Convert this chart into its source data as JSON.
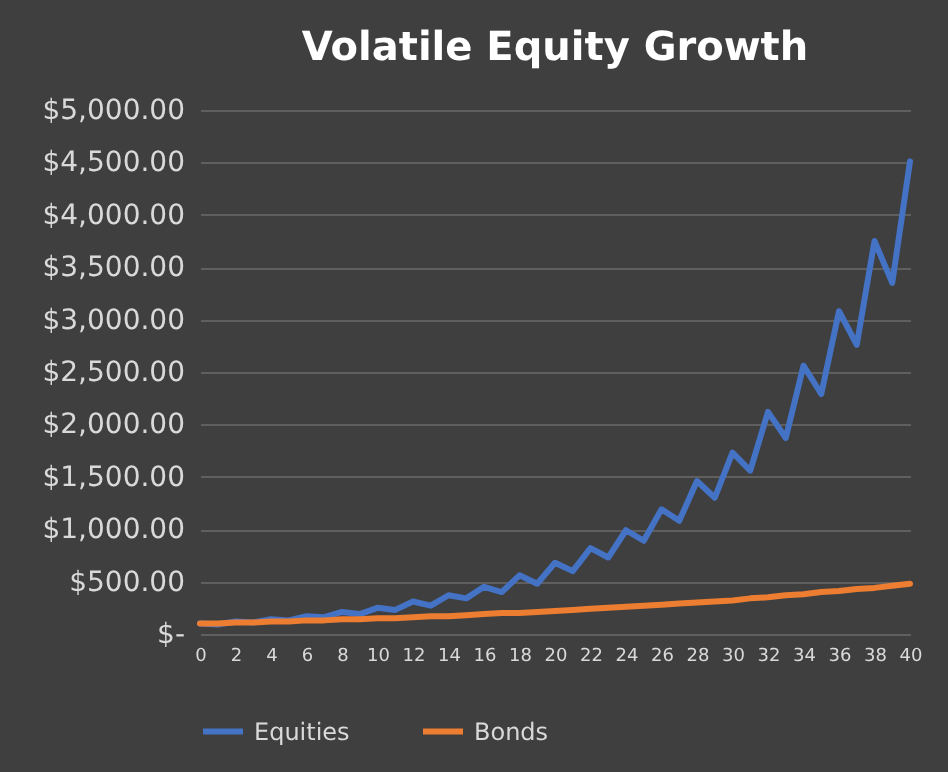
{
  "chart_data": {
    "type": "line",
    "title": "Volatile Equity Growth",
    "x": [
      0,
      1,
      2,
      3,
      4,
      5,
      6,
      7,
      8,
      9,
      10,
      11,
      12,
      13,
      14,
      15,
      16,
      17,
      18,
      19,
      20,
      21,
      22,
      23,
      24,
      25,
      26,
      27,
      28,
      29,
      30,
      31,
      32,
      33,
      34,
      35,
      36,
      37,
      38,
      39,
      40
    ],
    "series": [
      {
        "name": "Equities",
        "color": "#4472c4",
        "values": [
          100,
          90,
          120,
          110,
          140,
          130,
          170,
          160,
          210,
          190,
          250,
          230,
          310,
          270,
          370,
          340,
          450,
          400,
          560,
          480,
          680,
          600,
          820,
          730,
          990,
          890,
          1190,
          1080,
          1460,
          1300,
          1730,
          1560,
          2120,
          1870,
          2560,
          2290,
          3080,
          2760,
          3750,
          3350,
          4510
        ]
      },
      {
        "name": "Bonds",
        "color": "#ed7d31",
        "values": [
          100,
          100,
          110,
          110,
          120,
          120,
          130,
          130,
          140,
          140,
          150,
          150,
          160,
          170,
          170,
          180,
          190,
          200,
          200,
          210,
          220,
          230,
          240,
          250,
          260,
          270,
          280,
          290,
          300,
          310,
          320,
          340,
          350,
          370,
          380,
          400,
          410,
          430,
          440,
          460,
          480
        ]
      }
    ],
    "xlim": [
      0,
      40
    ],
    "xticks": [
      0,
      2,
      4,
      6,
      8,
      10,
      12,
      14,
      16,
      18,
      20,
      22,
      24,
      26,
      28,
      30,
      32,
      34,
      36,
      38,
      40
    ],
    "ylim": [
      0,
      5000
    ],
    "yticks": [
      {
        "value": 0,
        "label": "$-"
      },
      {
        "value": 500,
        "label": "$500.00"
      },
      {
        "value": 1000,
        "label": "$1,000.00"
      },
      {
        "value": 1500,
        "label": "$1,500.00"
      },
      {
        "value": 2000,
        "label": "$2,000.00"
      },
      {
        "value": 2500,
        "label": "$2,500.00"
      },
      {
        "value": 3000,
        "label": "$3,000.00"
      },
      {
        "value": 3500,
        "label": "$3,500.00"
      },
      {
        "value": 4000,
        "label": "$4,000.00"
      },
      {
        "value": 4500,
        "label": "$4,500.00"
      },
      {
        "value": 5000,
        "label": "$5,000.00"
      }
    ],
    "grid": "y",
    "legend": "bottom",
    "marker": "none",
    "line_style": "solid"
  }
}
